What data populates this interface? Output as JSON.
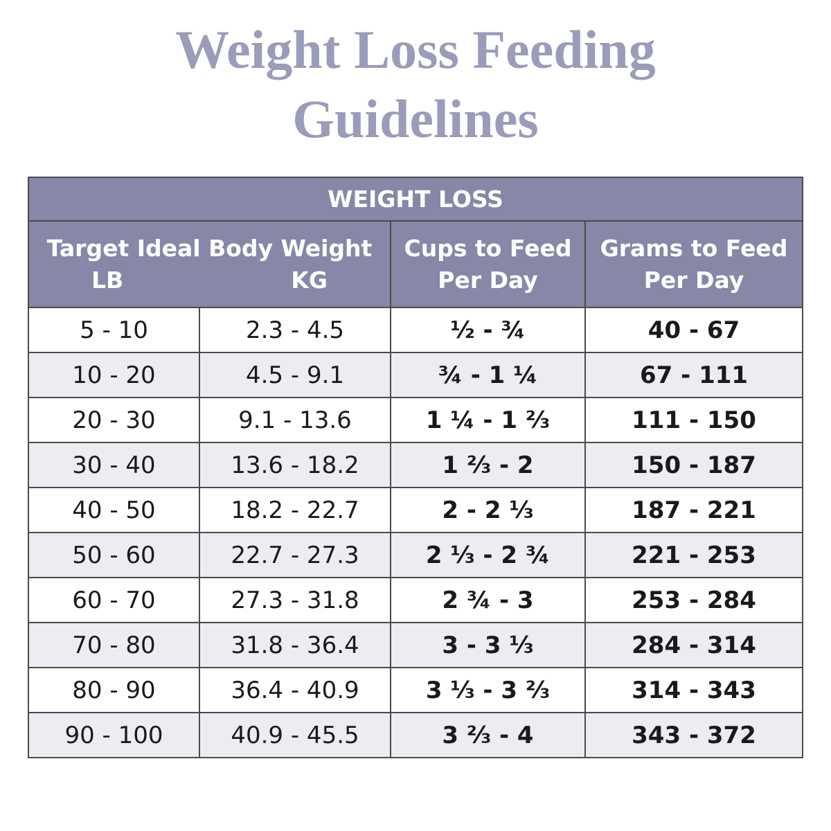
{
  "header": {
    "title_lines": [
      "Weight Loss Feeding",
      "Guidelines"
    ]
  },
  "table": {
    "section": "WEIGHT LOSS",
    "columns": {
      "weight": "Target Ideal Body Weight",
      "lb": "LB",
      "kg": "KG",
      "cups": [
        "Cups to Feed",
        "Per Day"
      ],
      "grams": [
        "Grams to Feed",
        "Per Day"
      ]
    },
    "rows": [
      [
        "5 - 10",
        "2.3 - 4.5",
        "½ - ¾",
        "40 - 67"
      ],
      [
        "10 - 20",
        "4.5 - 9.1",
        "¾ - 1 ¼",
        "67 - 111"
      ],
      [
        "20 - 30",
        "9.1 - 13.6",
        "1 ¼ - 1 ⅔",
        "111 - 150"
      ],
      [
        "30 - 40",
        "13.6 - 18.2",
        "1 ⅔ - 2",
        "150 - 187"
      ],
      [
        "40 - 50",
        "18.2 - 22.7",
        "2 - 2 ⅓",
        "187 - 221"
      ],
      [
        "50 - 60",
        "22.7 - 27.3",
        "2 ⅓ - 2 ¾",
        "221 - 253"
      ],
      [
        "60 - 70",
        "27.3 - 31.8",
        "2 ¾ - 3",
        "253 - 284"
      ],
      [
        "70 - 80",
        "31.8 - 36.4",
        "3 - 3 ⅓",
        "284 - 314"
      ],
      [
        "80 - 90",
        "36.4 - 40.9",
        "3 ⅓ - 3 ⅔",
        "314 - 343"
      ],
      [
        "90 - 100",
        "40.9 - 45.5",
        "3 ⅔ - 4",
        "343 - 372"
      ]
    ]
  }
}
